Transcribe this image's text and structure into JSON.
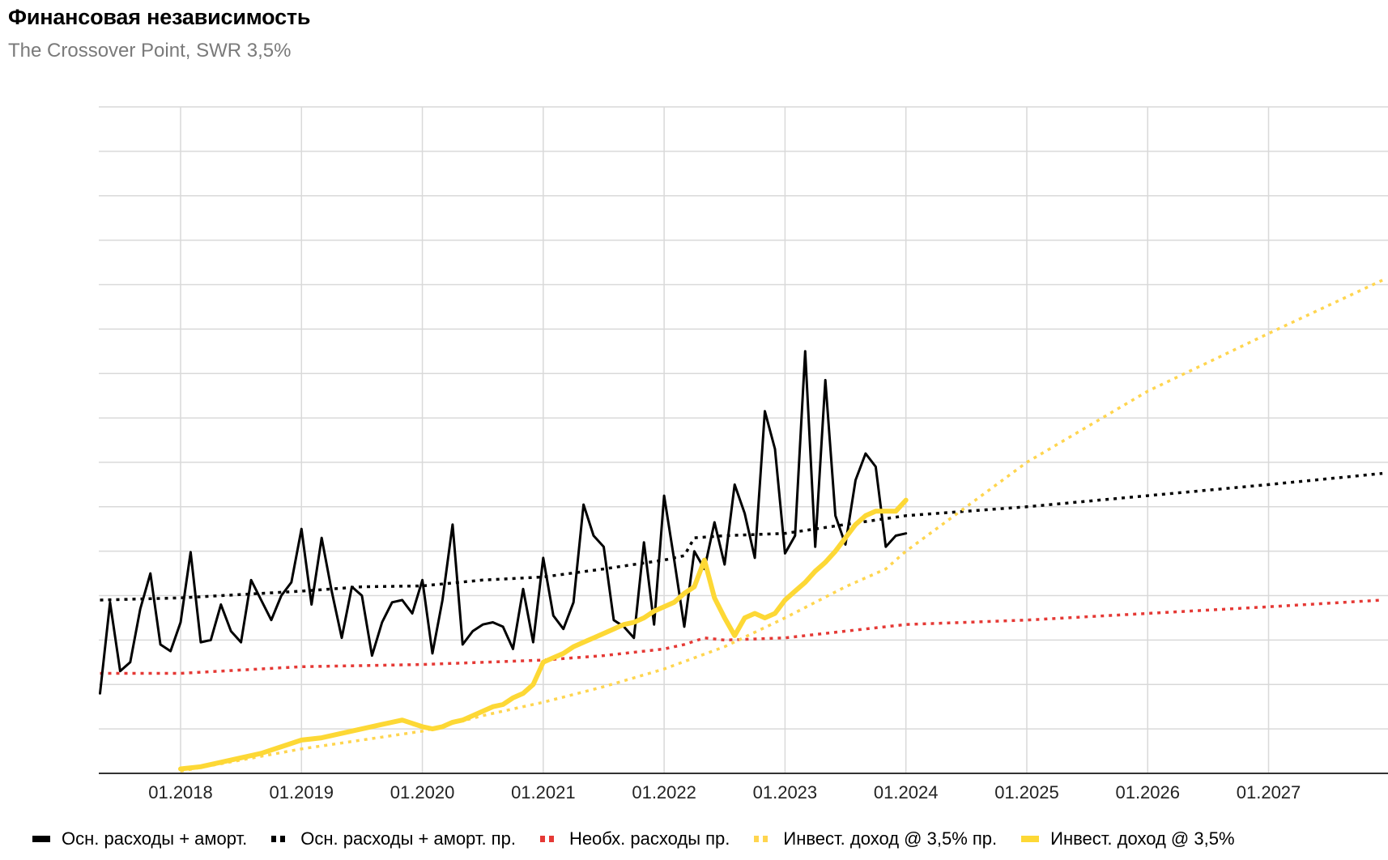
{
  "title": "Финансовая независимость",
  "subtitle": "The Crossover Point, SWR 3,5%",
  "chart_data": {
    "type": "line",
    "title": "Финансовая независимость",
    "subtitle": "The Crossover Point, SWR 3,5%",
    "xlabel": "",
    "ylabel": "",
    "x_unit": "months since 01.2017",
    "xlim": [
      4.0,
      131.3
    ],
    "x_tick_labels": [
      "01.2018",
      "01.2019",
      "01.2020",
      "01.2021",
      "01.2022",
      "01.2023",
      "01.2024",
      "01.2025",
      "01.2026",
      "01.2027"
    ],
    "x_tick_values": [
      12,
      24,
      36,
      48,
      60,
      72,
      84,
      96,
      108,
      120
    ],
    "y_tick_labels": [],
    "ylim": [
      0,
      15
    ],
    "y_gridlines": 15,
    "grid": true,
    "legend_position": "bottom",
    "series": [
      {
        "name": "Осн. расходы + аморт.",
        "color": "#000000",
        "style": "solid",
        "width": 3,
        "x": [
          4,
          5,
          6,
          7,
          8,
          9,
          10,
          11,
          12,
          13,
          14,
          15,
          16,
          17,
          18,
          19,
          20,
          21,
          22,
          23,
          24,
          25,
          26,
          27,
          28,
          29,
          30,
          31,
          32,
          33,
          34,
          35,
          36,
          37,
          38,
          39,
          40,
          41,
          42,
          43,
          44,
          45,
          46,
          47,
          48,
          49,
          50,
          51,
          52,
          53,
          54,
          55,
          56,
          57,
          58,
          59,
          60,
          61,
          62,
          63,
          64,
          65,
          66,
          67,
          68,
          69,
          70,
          71,
          72,
          73,
          74,
          75,
          76,
          77,
          78,
          79,
          80,
          81,
          82,
          83,
          84
        ],
        "y": [
          1.8,
          3.85,
          2.3,
          2.5,
          3.7,
          4.5,
          2.9,
          2.75,
          3.4,
          4.98,
          2.95,
          3.0,
          3.8,
          3.2,
          2.95,
          4.35,
          3.9,
          3.45,
          4.0,
          4.3,
          5.5,
          3.8,
          5.3,
          4.1,
          3.05,
          4.2,
          4.0,
          2.65,
          3.4,
          3.85,
          3.9,
          3.6,
          4.35,
          2.7,
          3.9,
          5.6,
          2.9,
          3.2,
          3.35,
          3.4,
          3.3,
          2.8,
          4.15,
          2.95,
          4.85,
          3.55,
          3.25,
          3.85,
          6.05,
          5.35,
          5.1,
          3.45,
          3.3,
          3.05,
          5.2,
          3.35,
          6.25,
          4.8,
          3.3,
          5.0,
          4.6,
          5.65,
          4.7,
          6.5,
          5.85,
          4.85,
          8.15,
          7.3,
          4.95,
          5.35,
          9.5,
          5.1,
          8.85,
          5.8,
          5.15,
          6.6,
          7.2,
          6.9,
          5.1,
          5.35,
          5.4
        ],
        "note": "Y values are estimated in gridline units."
      },
      {
        "name": "Осн. расходы + аморт. пр.",
        "color": "#000000",
        "style": "dotted",
        "width": 3.5,
        "x": [
          4,
          12,
          24,
          30,
          36,
          42,
          48,
          54,
          60,
          62,
          63,
          66,
          72,
          78,
          84,
          96,
          108,
          120,
          131.3
        ],
        "y": [
          3.9,
          3.95,
          4.1,
          4.2,
          4.22,
          4.35,
          4.42,
          4.6,
          4.8,
          4.9,
          5.3,
          5.35,
          5.4,
          5.6,
          5.8,
          6.0,
          6.25,
          6.5,
          6.75
        ]
      },
      {
        "name": "Необх. расходы пр.",
        "color": "#e53935",
        "style": "dotted",
        "width": 3.5,
        "x": [
          4,
          12,
          24,
          36,
          48,
          54,
          60,
          62,
          64,
          66,
          72,
          78,
          84,
          96,
          108,
          120,
          131.3
        ],
        "y": [
          2.25,
          2.25,
          2.4,
          2.45,
          2.55,
          2.65,
          2.8,
          2.9,
          3.05,
          3.0,
          3.05,
          3.2,
          3.35,
          3.45,
          3.6,
          3.75,
          3.9
        ]
      },
      {
        "name": "Инвест. доход @ 3,5% пр.",
        "color": "#ffd54f",
        "style": "dotted",
        "width": 3.5,
        "x": [
          12,
          24,
          36,
          42,
          48,
          54,
          60,
          66,
          72,
          78,
          82,
          84,
          96,
          108,
          120,
          131.3
        ],
        "y": [
          0.05,
          0.55,
          0.95,
          1.3,
          1.6,
          1.95,
          2.35,
          2.85,
          3.5,
          4.2,
          4.6,
          5.0,
          7.0,
          8.6,
          9.9,
          11.1
        ]
      },
      {
        "name": "Инвест. доход @ 3,5%",
        "color": "#fdd835",
        "style": "solid",
        "width": 6,
        "x": [
          12,
          14,
          16,
          18,
          20,
          22,
          24,
          26,
          28,
          30,
          32,
          34,
          36,
          37,
          38,
          39,
          40,
          41,
          42,
          43,
          44,
          45,
          46,
          47,
          48,
          49,
          50,
          51,
          52,
          53,
          54,
          55,
          56,
          57,
          58,
          59,
          60,
          61,
          62,
          63,
          64,
          65,
          66,
          67,
          68,
          69,
          70,
          71,
          72,
          73,
          74,
          75,
          76,
          77,
          78,
          79,
          80,
          81,
          82,
          83,
          84
        ],
        "y": [
          0.1,
          0.15,
          0.25,
          0.35,
          0.45,
          0.6,
          0.75,
          0.8,
          0.9,
          1.0,
          1.1,
          1.2,
          1.05,
          1.0,
          1.05,
          1.15,
          1.2,
          1.3,
          1.4,
          1.5,
          1.55,
          1.7,
          1.8,
          2.0,
          2.5,
          2.6,
          2.7,
          2.85,
          2.95,
          3.05,
          3.15,
          3.25,
          3.35,
          3.4,
          3.5,
          3.65,
          3.75,
          3.85,
          4.05,
          4.2,
          4.8,
          3.95,
          3.5,
          3.1,
          3.5,
          3.6,
          3.5,
          3.6,
          3.9,
          4.1,
          4.3,
          4.55,
          4.75,
          5.0,
          5.3,
          5.6,
          5.8,
          5.9,
          5.9,
          5.9,
          6.15
        ]
      }
    ]
  }
}
